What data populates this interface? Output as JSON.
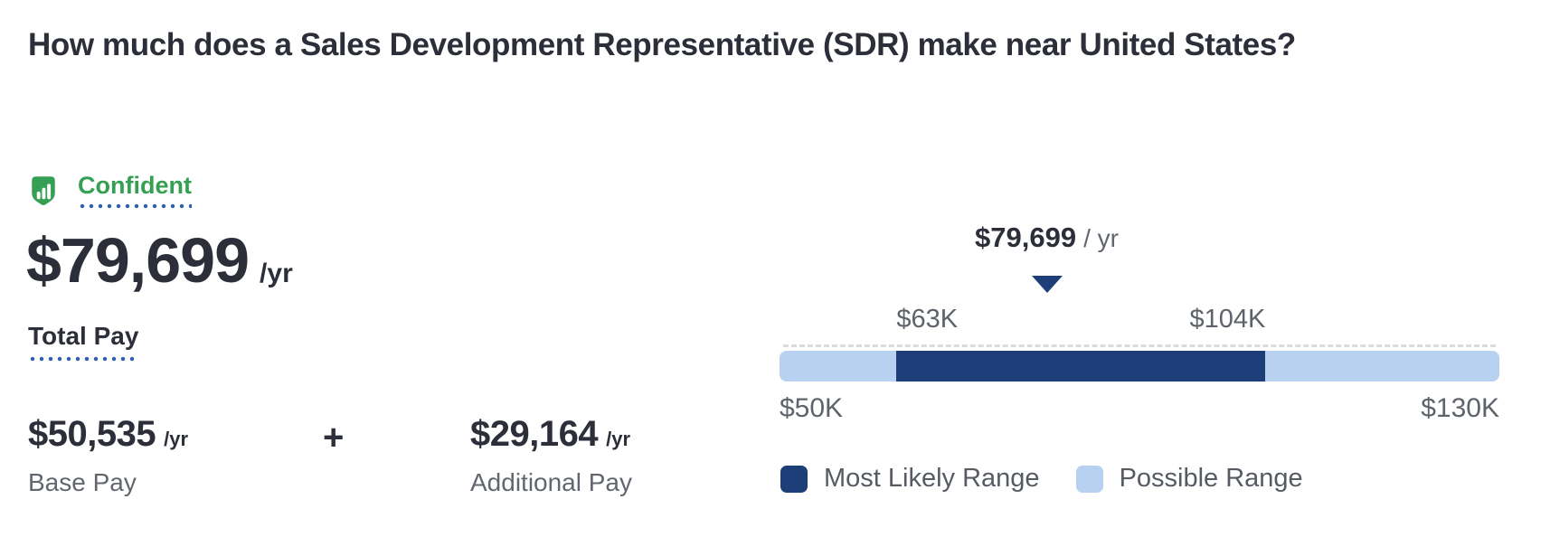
{
  "page": {
    "title": "How much does a Sales Development Representative (SDR) make near United States?"
  },
  "confidence": {
    "label": "Confident",
    "icon": "shield-chart-icon",
    "color": "#35a053"
  },
  "total_pay": {
    "amount": "$79,699",
    "period": "/yr",
    "label": "Total Pay"
  },
  "breakdown": {
    "base": {
      "amount": "$50,535",
      "period": "/yr",
      "label": "Base Pay"
    },
    "plus": "+",
    "additional": {
      "amount": "$29,164",
      "period": "/yr",
      "label": "Additional Pay"
    }
  },
  "chart_data": {
    "type": "range-bar",
    "pointer": {
      "amount": "$79,699",
      "period": "/ yr",
      "value": 79699
    },
    "axis_min": 50000,
    "axis_max": 130000,
    "axis_min_label": "$50K",
    "axis_max_label": "$130K",
    "most_likely_min": 63000,
    "most_likely_max": 104000,
    "most_likely_min_label": "$63K",
    "most_likely_max_label": "$104K",
    "colors": {
      "most_likely": "#1d3e78",
      "possible": "#b9d1f1"
    },
    "legend": [
      {
        "label": "Most Likely Range",
        "color": "#1d3e78"
      },
      {
        "label": "Possible Range",
        "color": "#b9d1f1"
      }
    ]
  }
}
